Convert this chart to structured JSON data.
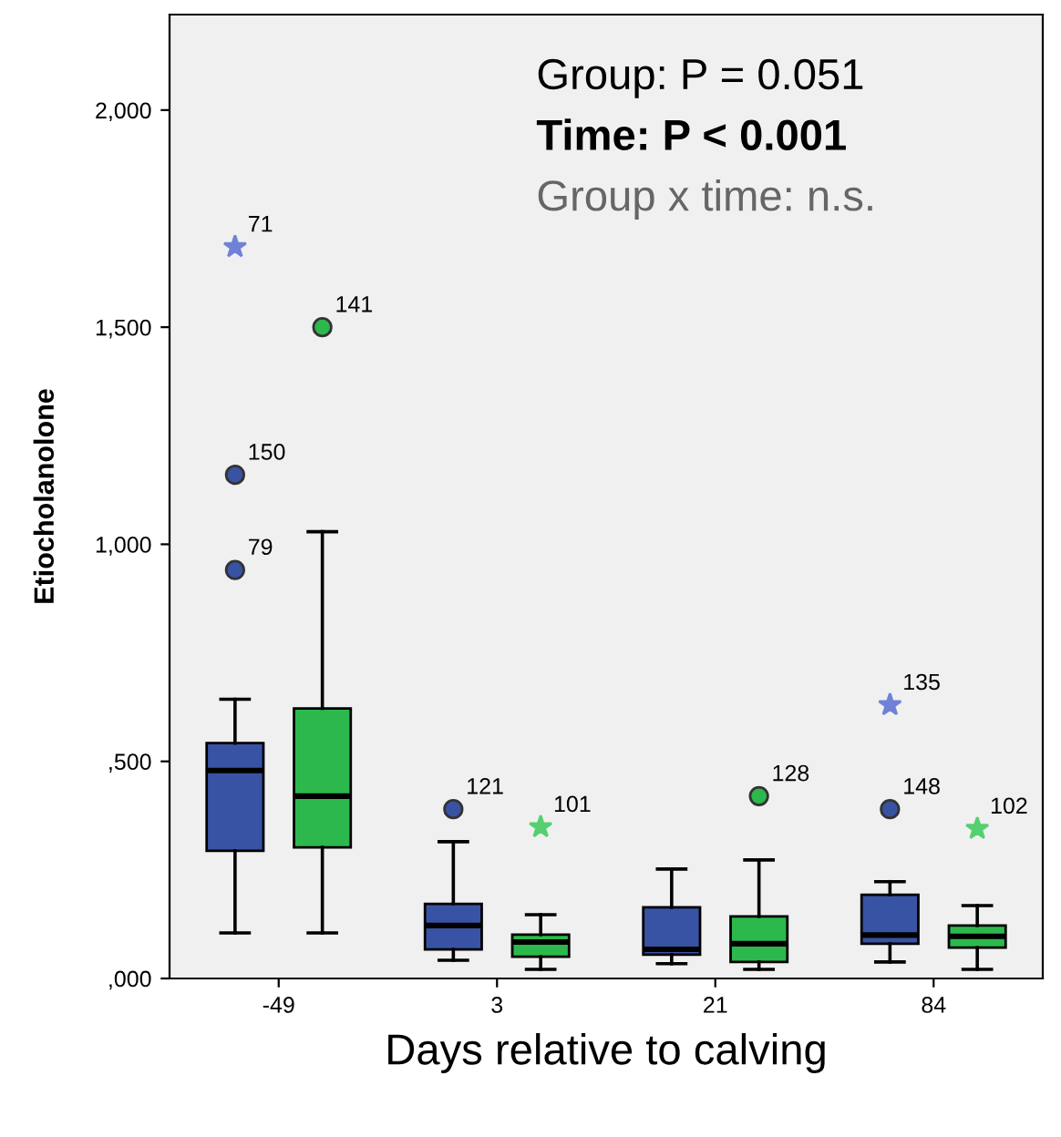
{
  "chart_data": {
    "type": "box",
    "xlabel": "Days relative to calving",
    "ylabel": "Etiocholanolone",
    "categories": [
      "-49",
      "3",
      "21",
      "84"
    ],
    "ylim": [
      0,
      2220
    ],
    "yticks": [
      {
        "value": 0,
        "label": ",000"
      },
      {
        "value": 500,
        "label": ",500"
      },
      {
        "value": 1000,
        "label": "1,000"
      },
      {
        "value": 1500,
        "label": "1,500"
      },
      {
        "value": 2000,
        "label": "2,000"
      }
    ],
    "series": [
      {
        "color": "#3953a4",
        "boxes": [
          {
            "low": 105,
            "q1": 294,
            "median": 479,
            "q3": 542,
            "high": 643,
            "outliers": [
              1160,
              941
            ]
          },
          {
            "low": 42,
            "q1": 67,
            "median": 122,
            "q3": 172,
            "high": 315,
            "outliers": [
              390
            ]
          },
          {
            "low": 34,
            "q1": 55,
            "median": 67,
            "q3": 164,
            "high": 252
          },
          {
            "low": 38,
            "q1": 80,
            "median": 100,
            "q3": 193,
            "high": 223,
            "outliers": [
              390
            ]
          }
        ]
      },
      {
        "color": "#2db84d",
        "boxes": [
          {
            "low": 105,
            "q1": 302,
            "median": 420,
            "q3": 622,
            "high": 1029,
            "outliers": [
              1500
            ]
          },
          {
            "low": 21,
            "q1": 50,
            "median": 84,
            "q3": 101,
            "high": 147
          },
          {
            "low": 21,
            "q1": 38,
            "median": 80,
            "q3": 143,
            "high": 273,
            "outliers": [
              420
            ]
          },
          {
            "low": 21,
            "q1": 71,
            "median": 97,
            "q3": 122,
            "high": 168
          }
        ]
      },
      {
        "type": "scatter",
        "marker": "star",
        "color": "#6f82d8",
        "x": [
          "-49",
          "84"
        ],
        "values": [
          1685,
          630
        ]
      },
      {
        "type": "scatter",
        "marker": "star",
        "color": "#55d070",
        "x": [
          "3",
          "84"
        ],
        "values": [
          349,
          345
        ]
      }
    ],
    "annotations": [
      "Group: P = 0.051",
      "Time: P < 0.001",
      "Group x time: n.s.",
      "150",
      "79",
      "121",
      "148",
      "141",
      "128",
      "71",
      "135",
      "101",
      "102"
    ]
  }
}
